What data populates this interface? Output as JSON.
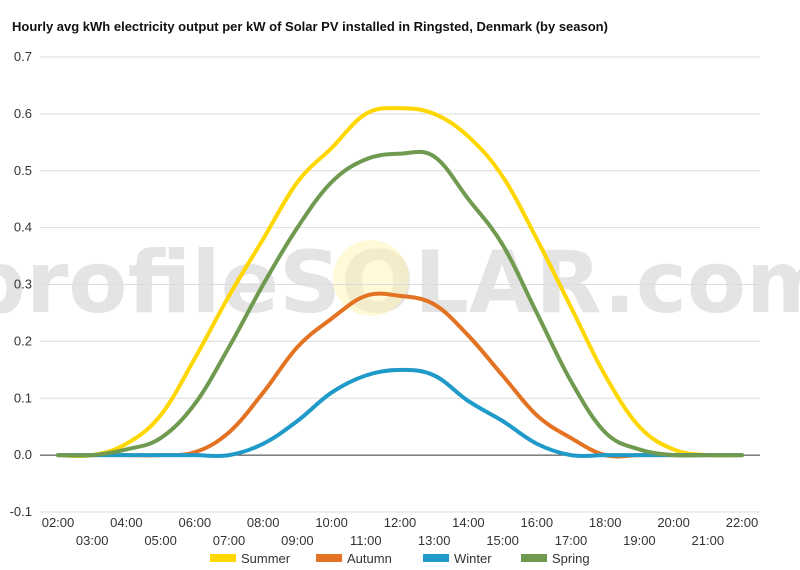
{
  "chart_data": {
    "type": "line",
    "title": "Hourly avg kWh electricity output per kW of Solar PV installed in Ringsted, Denmark (by season)",
    "xlabel": "",
    "ylabel": "",
    "x": [
      "02:00",
      "03:00",
      "04:00",
      "05:00",
      "06:00",
      "07:00",
      "08:00",
      "09:00",
      "10:00",
      "11:00",
      "12:00",
      "13:00",
      "14:00",
      "15:00",
      "16:00",
      "17:00",
      "18:00",
      "19:00",
      "20:00",
      "21:00",
      "22:00"
    ],
    "ylim": [
      -0.1,
      0.7
    ],
    "yticks": [
      "-0.1",
      "0.0",
      "0.1",
      "0.2",
      "0.3",
      "0.4",
      "0.5",
      "0.6",
      "0.7"
    ],
    "grid": true,
    "legend": "bottom",
    "series": [
      {
        "name": "Summer",
        "color": "#ffd700",
        "values": [
          0.0,
          0.0,
          0.02,
          0.07,
          0.17,
          0.28,
          0.38,
          0.48,
          0.54,
          0.6,
          0.61,
          0.6,
          0.56,
          0.49,
          0.38,
          0.26,
          0.14,
          0.05,
          0.01,
          0.0,
          0.0
        ]
      },
      {
        "name": "Autumn",
        "color": "#e37222",
        "values": [
          0.0,
          0.0,
          0.0,
          0.0,
          0.005,
          0.04,
          0.11,
          0.19,
          0.24,
          0.28,
          0.28,
          0.265,
          0.21,
          0.14,
          0.07,
          0.03,
          0.0,
          0.0,
          0.0,
          0.0,
          0.0
        ]
      },
      {
        "name": "Winter",
        "color": "#1f9ac9",
        "values": [
          0.0,
          0.0,
          0.0,
          0.0,
          0.0,
          0.0,
          0.02,
          0.06,
          0.11,
          0.14,
          0.15,
          0.14,
          0.095,
          0.06,
          0.02,
          0.0,
          0.0,
          0.0,
          0.0,
          0.0,
          0.0
        ]
      },
      {
        "name": "Spring",
        "color": "#6f9a4f",
        "values": [
          0.0,
          0.0,
          0.01,
          0.03,
          0.09,
          0.19,
          0.3,
          0.4,
          0.48,
          0.52,
          0.53,
          0.525,
          0.45,
          0.37,
          0.25,
          0.13,
          0.04,
          0.01,
          0.0,
          0.0,
          0.0
        ]
      }
    ]
  },
  "watermark": "profileSOLAR.com"
}
